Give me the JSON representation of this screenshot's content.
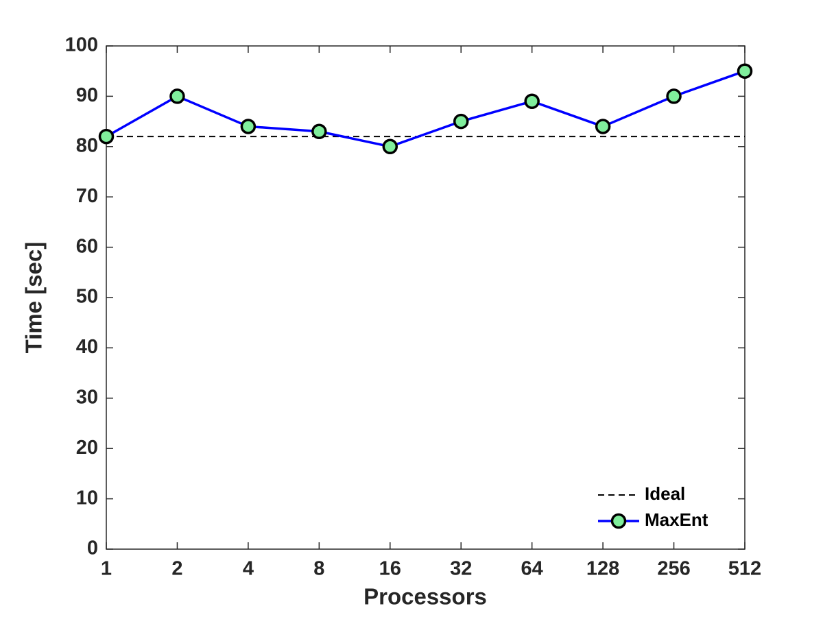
{
  "chart_data": {
    "type": "line",
    "x_label": "Processors",
    "y_label": "Time [sec]",
    "x": [
      1,
      2,
      4,
      8,
      16,
      32,
      64,
      128,
      256,
      512
    ],
    "xlim": [
      1,
      512
    ],
    "xscale": "log2",
    "xticks": [
      1,
      2,
      4,
      8,
      16,
      32,
      64,
      128,
      256,
      512
    ],
    "ylim": [
      0,
      100
    ],
    "yticks": [
      0,
      10,
      20,
      30,
      40,
      50,
      60,
      70,
      80,
      90,
      100
    ],
    "legend": "lower right",
    "series": [
      {
        "name": "Ideal",
        "color": "#000000",
        "dashed": true,
        "marker": false,
        "values": [
          82,
          82,
          82,
          82,
          82,
          82,
          82,
          82,
          82,
          82
        ]
      },
      {
        "name": "MaxEnt",
        "color": "#0000ff",
        "dashed": false,
        "marker": true,
        "marker_color": "#80ee9c",
        "values": [
          82,
          90,
          84,
          83,
          80,
          85,
          89,
          84,
          90,
          95
        ]
      }
    ]
  }
}
